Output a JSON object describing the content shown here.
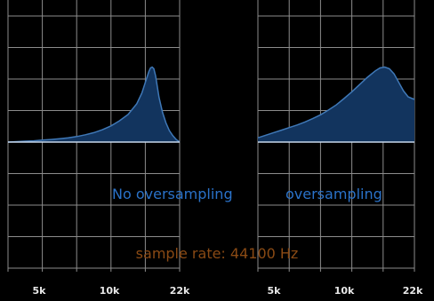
{
  "colors": {
    "background": "#000000",
    "grid": "#8c8c8c",
    "fill": "#12345e",
    "curve": "#3f78b7",
    "baseline": "#c8d8ec",
    "panel_label": "#2a72c9",
    "footer_text": "#8a4a14",
    "tick_text": "#e8e8e8"
  },
  "footer": {
    "text": "sample rate: 44100 Hz"
  },
  "chart_data": [
    {
      "type": "area",
      "panel_label": "No oversampling",
      "x_ticks": [
        "5k",
        "10k",
        "22k"
      ],
      "grid": true,
      "x": [
        0,
        0.05,
        0.1,
        0.15,
        0.2,
        0.25,
        0.3,
        0.35,
        0.4,
        0.45,
        0.5,
        0.55,
        0.6,
        0.65,
        0.7,
        0.75,
        0.78,
        0.8,
        0.82,
        0.83,
        0.84,
        0.85,
        0.86,
        0.87,
        0.88,
        0.9,
        0.92,
        0.94,
        0.96,
        0.98,
        1.0
      ],
      "y": [
        0.0,
        0.01,
        0.02,
        0.03,
        0.045,
        0.06,
        0.08,
        0.1,
        0.13,
        0.17,
        0.22,
        0.29,
        0.38,
        0.5,
        0.65,
        0.9,
        1.15,
        1.4,
        1.65,
        1.74,
        1.76,
        1.72,
        1.55,
        1.3,
        1.05,
        0.7,
        0.45,
        0.27,
        0.15,
        0.06,
        0.0
      ]
    },
    {
      "type": "area",
      "panel_label": "oversampling",
      "x_ticks": [
        "5k",
        "10k",
        "22k"
      ],
      "grid": true,
      "x": [
        0,
        0.05,
        0.1,
        0.15,
        0.2,
        0.25,
        0.3,
        0.35,
        0.4,
        0.45,
        0.5,
        0.55,
        0.6,
        0.65,
        0.7,
        0.75,
        0.78,
        0.81,
        0.84,
        0.87,
        0.9,
        0.93,
        0.96,
        1.0
      ],
      "y": [
        0.1,
        0.16,
        0.22,
        0.28,
        0.34,
        0.4,
        0.47,
        0.55,
        0.64,
        0.75,
        0.87,
        1.02,
        1.18,
        1.35,
        1.52,
        1.67,
        1.74,
        1.76,
        1.72,
        1.6,
        1.4,
        1.2,
        1.06,
        1.0
      ]
    }
  ]
}
